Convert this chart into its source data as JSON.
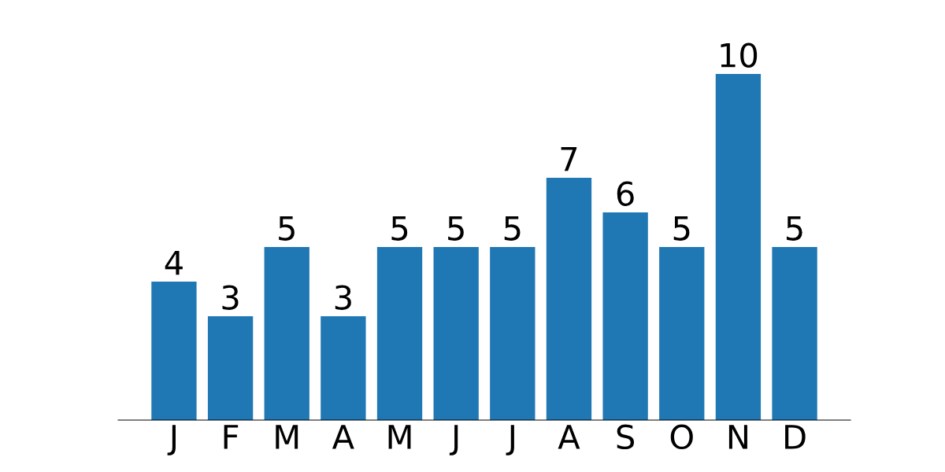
{
  "chart_data": {
    "type": "bar",
    "categories": [
      "J",
      "F",
      "M",
      "A",
      "M",
      "J",
      "J",
      "A",
      "S",
      "O",
      "N",
      "D"
    ],
    "values": [
      4,
      3,
      5,
      3,
      5,
      5,
      5,
      7,
      6,
      5,
      10,
      5
    ],
    "color": "#1f77b4",
    "data_labels": true,
    "tick_labels": "x",
    "grid": false
  }
}
